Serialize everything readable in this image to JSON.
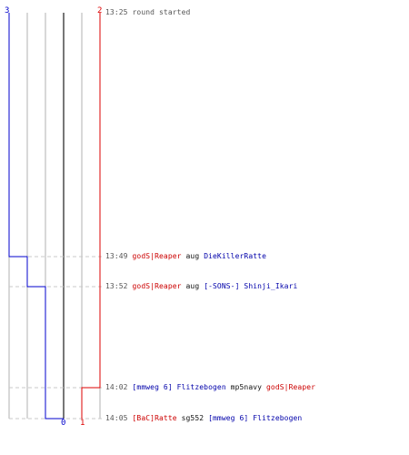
{
  "colors": {
    "team_a": "#0000cc",
    "team_b": "#dd0000",
    "grid": "#b0b0b0",
    "center": "#777777",
    "dash": "#c8c8c8",
    "time": "#555555",
    "verb": "#111111"
  },
  "header": {
    "team_a_label": "3",
    "team_b_label": "2"
  },
  "chart_data": {
    "type": "line",
    "x_unit": "time",
    "y_unit": "score",
    "lanes": [
      3,
      2,
      1,
      0,
      1,
      2
    ],
    "series": [
      {
        "name": "",
        "color": "#0000cc",
        "points": [
          [
            "13:25",
            3
          ],
          [
            "13:49",
            2
          ],
          [
            "13:52",
            1
          ],
          [
            "14:05",
            0
          ]
        ]
      },
      {
        "name": "",
        "color": "#dd0000",
        "points": [
          [
            "13:25",
            2
          ],
          [
            "14:02",
            1
          ]
        ]
      }
    ],
    "end_labels": [
      {
        "value": "0",
        "color": "#0000cc"
      },
      {
        "value": "1",
        "color": "#dd0000"
      }
    ]
  },
  "events": [
    {
      "time": "13:25",
      "parts": [
        {
          "text": "round started",
          "color": "gray"
        }
      ]
    },
    {
      "time": "13:49",
      "parts": [
        {
          "text": "godS|Reaper",
          "color": "red"
        },
        {
          "text": " aug ",
          "color": "black"
        },
        {
          "text": "DieKillerRatte",
          "color": "blue"
        }
      ]
    },
    {
      "time": "13:52",
      "parts": [
        {
          "text": "godS|Reaper",
          "color": "red"
        },
        {
          "text": " aug ",
          "color": "black"
        },
        {
          "text": "[-SONS-] Shinji_Ikari",
          "color": "blue"
        }
      ]
    },
    {
      "time": "14:02",
      "parts": [
        {
          "text": "[mmweg 6] Flitzebogen",
          "color": "blue"
        },
        {
          "text": " mp5navy ",
          "color": "black"
        },
        {
          "text": "godS|Reaper",
          "color": "red"
        }
      ]
    },
    {
      "time": "14:05",
      "parts": [
        {
          "text": "[BaC]Ratte",
          "color": "red"
        },
        {
          "text": " sg552 ",
          "color": "black"
        },
        {
          "text": "[mmweg 6] Flitzebogen",
          "color": "blue"
        }
      ]
    }
  ]
}
